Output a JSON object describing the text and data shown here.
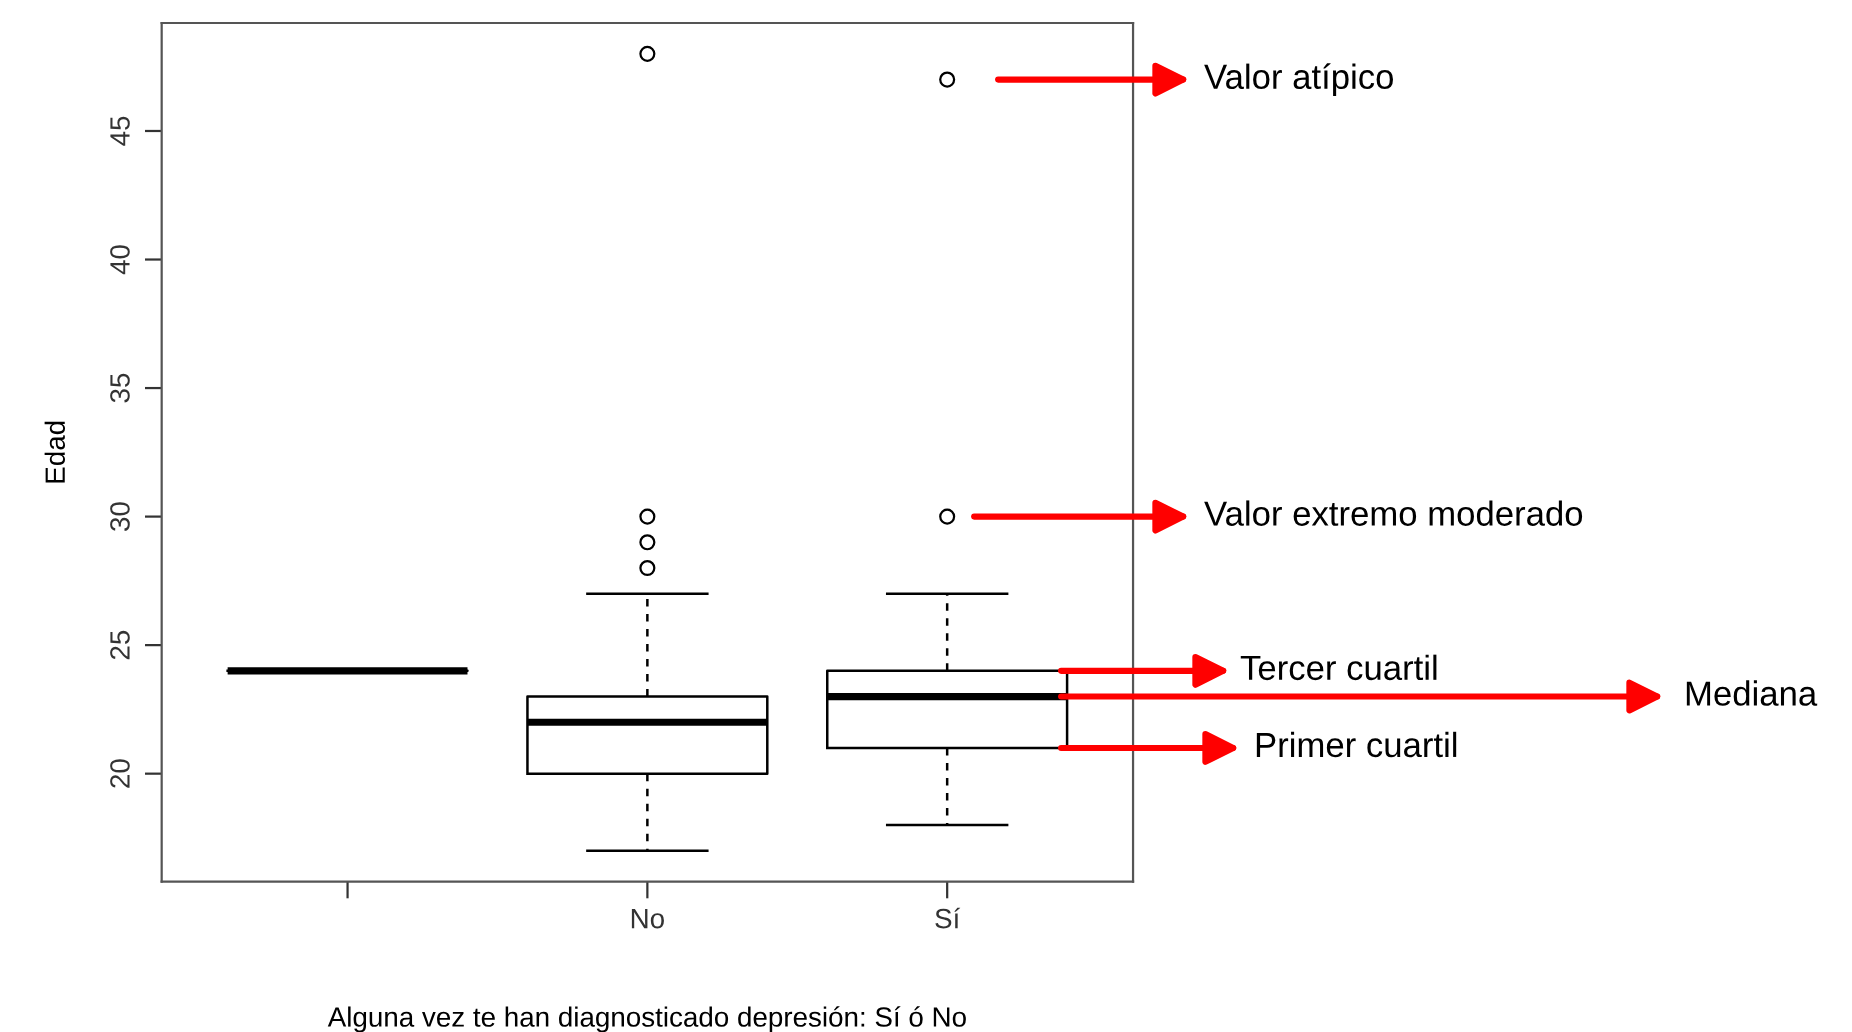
{
  "chart_data": {
    "type": "box",
    "xlabel": "Alguna vez te han diagnosticado depresión: Sí ó No",
    "ylabel": "Edad",
    "categories": [
      null,
      "No",
      "Sí"
    ],
    "boxes": [
      {
        "low": 24,
        "q1": 24,
        "median": 24,
        "q3": 24,
        "high": 24
      },
      {
        "low": 17,
        "q1": 20,
        "median": 22,
        "q3": 23,
        "high": 27,
        "outliers": [
          28,
          29,
          30,
          48
        ]
      },
      {
        "low": 18,
        "q1": 21,
        "median": 23,
        "q3": 24,
        "high": 27,
        "outliers": [
          30,
          47
        ]
      }
    ],
    "ylim": [
      15.8,
      49.2
    ],
    "yticks": [
      20,
      25,
      30,
      35,
      40,
      45
    ],
    "grid": false,
    "annotations": [
      "Valor atípico",
      "Valor extremo moderado",
      "Tercer cuartil",
      "Mediana",
      "Primer cuartil"
    ]
  }
}
